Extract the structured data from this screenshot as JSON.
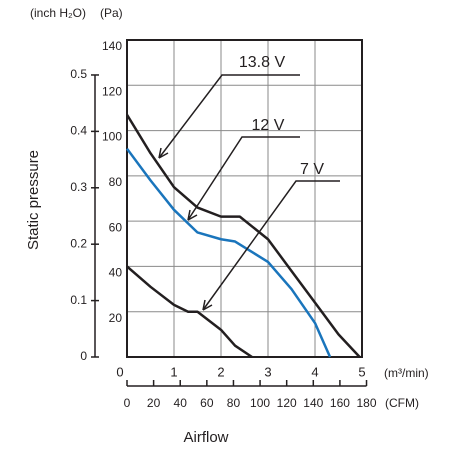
{
  "chart_data": {
    "type": "line",
    "y_label": "Static pressure",
    "x_label": "Airflow",
    "y_unit": "(Pa)",
    "y2_unit": "(inch H₂O)",
    "x_unit": "(m³/min)",
    "x2_unit": "(CFM)",
    "xlim": [
      0,
      5
    ],
    "xticks": [
      0,
      1,
      2,
      3,
      4,
      5
    ],
    "ylim": [
      0,
      140
    ],
    "yticks": [
      20,
      40,
      60,
      80,
      100,
      120,
      140
    ],
    "y2lim": [
      0,
      0.562
    ],
    "y2ticks": [
      0,
      0.1,
      0.2,
      0.3,
      0.4,
      0.5
    ],
    "x2lim": [
      0,
      176.6
    ],
    "x2ticks": [
      0,
      20,
      40,
      60,
      80,
      100,
      120,
      140,
      160,
      180
    ],
    "grid": true,
    "series": [
      {
        "name": "13.8 V",
        "color": "#231f20",
        "x": [
          0,
          0.5,
          1,
          1.5,
          2,
          2.4,
          3,
          3.5,
          4,
          4.5,
          4.95
        ],
        "values": [
          107,
          90,
          75,
          66,
          62,
          62,
          52,
          38,
          24,
          10,
          0
        ]
      },
      {
        "name": "12 V",
        "color": "#1a75bc",
        "x": [
          0,
          0.5,
          1,
          1.5,
          2,
          2.3,
          3,
          3.5,
          4,
          4.32
        ],
        "values": [
          92,
          78,
          65,
          55,
          52,
          51,
          42,
          30,
          15,
          0
        ]
      },
      {
        "name": "7 V",
        "color": "#231f20",
        "x": [
          0,
          0.5,
          1,
          1.3,
          1.5,
          2,
          2.3,
          2.66
        ],
        "values": [
          40,
          31,
          23,
          20,
          20,
          12,
          5,
          0
        ]
      }
    ]
  }
}
